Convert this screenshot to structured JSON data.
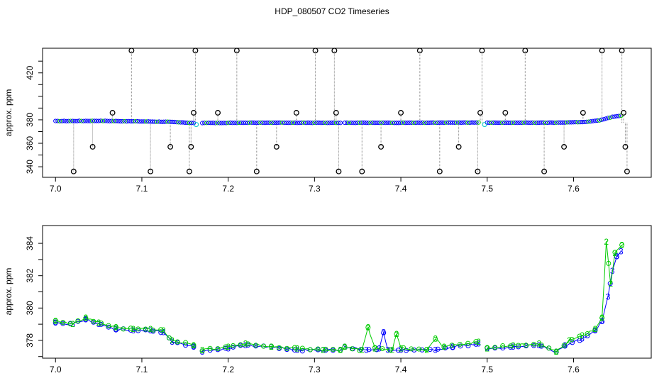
{
  "title": "HDP_080507  CO2 Timeseries",
  "colors": {
    "background": "#ffffff",
    "frame": "#000000",
    "series_blue": "#0000ff",
    "series_green": "#00cc00",
    "series_cyan": "#22cccc",
    "outlier_black": "#000000",
    "drop_lines": "#888888"
  },
  "chart_data": [
    {
      "type": "scatter",
      "ylabel": "approx. ppm",
      "xlabel": "",
      "xlim": [
        6.985,
        7.69
      ],
      "ylim": [
        331,
        441
      ],
      "x_ticks": [
        7.0,
        7.1,
        7.2,
        7.3,
        7.4,
        7.5,
        7.6
      ],
      "x_tick_labels": [
        "7.0",
        "7.1",
        "7.2",
        "7.3",
        "7.4",
        "7.5",
        "7.6"
      ],
      "y_ticks": [
        340,
        350,
        360,
        370,
        380,
        390,
        400,
        410,
        420,
        430
      ],
      "y_tick_labels": [
        "340",
        "",
        "360",
        "",
        "380",
        "",
        "",
        "",
        "420",
        ""
      ],
      "baseline_segments": [
        {
          "x": [
            7.0,
            7.05,
            7.1,
            7.13,
            7.16
          ],
          "y": [
            378.9,
            379.1,
            378.6,
            378.3,
            377.3
          ]
        },
        {
          "x": [
            7.17,
            7.25,
            7.33
          ],
          "y": [
            377.3,
            377.6,
            377.4
          ]
        },
        {
          "x": [
            7.335,
            7.42,
            7.49
          ],
          "y": [
            377.5,
            377.5,
            377.7
          ]
        },
        {
          "x": [
            7.5,
            7.58,
            7.615,
            7.63,
            7.645,
            7.655
          ],
          "y": [
            377.5,
            377.6,
            378.2,
            379.5,
            382.5,
            383.5
          ]
        }
      ],
      "cyan_points": [
        {
          "x": 7.163,
          "y": 376
        },
        {
          "x": 7.497,
          "y": 376
        }
      ],
      "outliers": [
        {
          "x": 7.021,
          "y": 336
        },
        {
          "x": 7.043,
          "y": 357
        },
        {
          "x": 7.066,
          "y": 386
        },
        {
          "x": 7.088,
          "y": 439
        },
        {
          "x": 7.11,
          "y": 336
        },
        {
          "x": 7.133,
          "y": 357
        },
        {
          "x": 7.155,
          "y": 336
        },
        {
          "x": 7.157,
          "y": 357
        },
        {
          "x": 7.16,
          "y": 386
        },
        {
          "x": 7.162,
          "y": 439
        },
        {
          "x": 7.188,
          "y": 386
        },
        {
          "x": 7.21,
          "y": 439
        },
        {
          "x": 7.233,
          "y": 336
        },
        {
          "x": 7.256,
          "y": 357
        },
        {
          "x": 7.279,
          "y": 386
        },
        {
          "x": 7.301,
          "y": 439
        },
        {
          "x": 7.323,
          "y": 439
        },
        {
          "x": 7.325,
          "y": 386
        },
        {
          "x": 7.328,
          "y": 336
        },
        {
          "x": 7.355,
          "y": 336
        },
        {
          "x": 7.377,
          "y": 357
        },
        {
          "x": 7.4,
          "y": 386
        },
        {
          "x": 7.422,
          "y": 439
        },
        {
          "x": 7.445,
          "y": 336
        },
        {
          "x": 7.467,
          "y": 357
        },
        {
          "x": 7.489,
          "y": 336
        },
        {
          "x": 7.492,
          "y": 386
        },
        {
          "x": 7.494,
          "y": 439
        },
        {
          "x": 7.521,
          "y": 386
        },
        {
          "x": 7.544,
          "y": 439
        },
        {
          "x": 7.566,
          "y": 336
        },
        {
          "x": 7.589,
          "y": 357
        },
        {
          "x": 7.611,
          "y": 386
        },
        {
          "x": 7.633,
          "y": 439
        },
        {
          "x": 7.656,
          "y": 439
        },
        {
          "x": 7.658,
          "y": 386
        },
        {
          "x": 7.66,
          "y": 357
        },
        {
          "x": 7.662,
          "y": 336
        }
      ]
    },
    {
      "type": "line",
      "ylabel": "approx. ppm",
      "xlabel": "",
      "xlim": [
        6.985,
        7.69
      ],
      "ylim": [
        376.9,
        385.1
      ],
      "x_ticks": [
        7.0,
        7.1,
        7.2,
        7.3,
        7.4,
        7.5,
        7.6
      ],
      "x_tick_labels": [
        "7.0",
        "7.1",
        "7.2",
        "7.3",
        "7.4",
        "7.5",
        "7.6"
      ],
      "y_ticks": [
        377,
        378,
        379,
        380,
        381,
        382,
        383,
        384
      ],
      "y_tick_labels": [
        "",
        "378",
        "",
        "380",
        "",
        "382",
        "",
        "384"
      ],
      "series": [
        {
          "marker": "3",
          "segments": [
            {
              "x": [
                7.0,
                7.02,
                7.035,
                7.05,
                7.07,
                7.09,
                7.11,
                7.125,
                7.135,
                7.16
              ],
              "y": [
                379.1,
                379.0,
                379.3,
                379.0,
                378.7,
                378.6,
                378.6,
                378.5,
                377.9,
                377.6
              ]
            },
            {
              "x": [
                7.17,
                7.2,
                7.22,
                7.25,
                7.28,
                7.31,
                7.33
              ],
              "y": [
                377.3,
                377.5,
                377.7,
                377.6,
                377.4,
                377.4,
                377.4
              ]
            },
            {
              "x": [
                7.335,
                7.36,
                7.375,
                7.38,
                7.385,
                7.4,
                7.44,
                7.46,
                7.49
              ],
              "y": [
                377.6,
                377.4,
                377.5,
                378.5,
                377.4,
                377.4,
                377.4,
                377.6,
                377.8
              ]
            },
            {
              "x": [
                7.5,
                7.53,
                7.56,
                7.58,
                7.59,
                7.61,
                7.625,
                7.633,
                7.64,
                7.645,
                7.65,
                7.655
              ],
              "y": [
                377.5,
                377.6,
                377.7,
                377.3,
                377.7,
                378.1,
                378.6,
                379.2,
                380.7,
                382.3,
                383.2,
                383.5
              ]
            }
          ]
        },
        {
          "marker": "2",
          "segments": [
            {
              "x": [
                7.0,
                7.02,
                7.035,
                7.05,
                7.07,
                7.09,
                7.11,
                7.125,
                7.135,
                7.16
              ],
              "y": [
                379.2,
                379.0,
                379.4,
                379.1,
                378.8,
                378.7,
                378.7,
                378.6,
                378.0,
                377.7
              ]
            },
            {
              "x": [
                7.17,
                7.2,
                7.22,
                7.25,
                7.28,
                7.31,
                7.33
              ],
              "y": [
                377.4,
                377.6,
                377.8,
                377.6,
                377.5,
                377.4,
                377.4
              ]
            },
            {
              "x": [
                7.335,
                7.355,
                7.362,
                7.37,
                7.39,
                7.395,
                7.4,
                7.43,
                7.44,
                7.45,
                7.49
              ],
              "y": [
                377.6,
                377.4,
                378.8,
                377.5,
                377.4,
                378.4,
                377.5,
                377.4,
                378.1,
                377.6,
                377.9
              ]
            },
            {
              "x": [
                7.5,
                7.53,
                7.56,
                7.58,
                7.595,
                7.61,
                7.625,
                7.633,
                7.638,
                7.643,
                7.648,
                7.656
              ],
              "y": [
                377.5,
                377.7,
                377.8,
                377.3,
                378.0,
                378.3,
                378.7,
                379.4,
                384.1,
                381.5,
                383.4,
                383.9
              ]
            }
          ]
        }
      ]
    }
  ]
}
